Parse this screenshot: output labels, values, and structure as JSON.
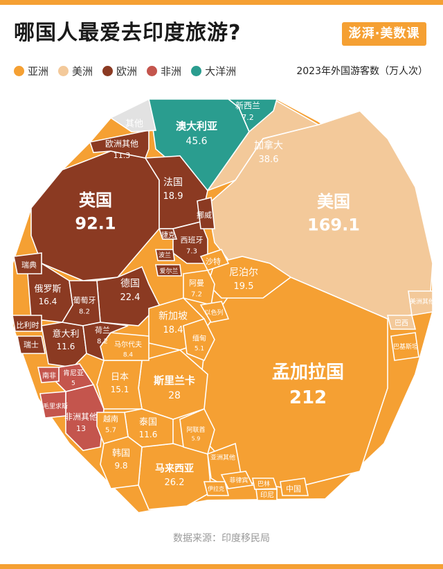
{
  "title": "哪国人最爱去印度旅游?",
  "logo_text": "澎湃·美数课",
  "unit_note": "2023年外国游客数（万人次）",
  "source": "数据来源：印度移民局",
  "legend": [
    {
      "label": "亚洲",
      "color": "#f5a033"
    },
    {
      "label": "美洲",
      "color": "#f3c99a"
    },
    {
      "label": "欧洲",
      "color": "#8b3a22"
    },
    {
      "label": "非洲",
      "color": "#c4554d"
    },
    {
      "label": "大洋洲",
      "color": "#2a9d8f"
    }
  ],
  "chart_data": {
    "type": "treemap",
    "unit": "万人次",
    "cells": [
      {
        "name": "孟加拉国",
        "value": 212,
        "region": "亚洲"
      },
      {
        "name": "美国",
        "value": 169.1,
        "region": "美洲"
      },
      {
        "name": "英国",
        "value": 92.1,
        "region": "欧洲"
      },
      {
        "name": "澳大利亚",
        "value": 45.6,
        "region": "大洋洲"
      },
      {
        "name": "加拿大",
        "value": 38.6,
        "region": "美洲"
      },
      {
        "name": "斯里兰卡",
        "value": 28,
        "region": "亚洲"
      },
      {
        "name": "马来西亚",
        "value": 26.2,
        "region": "亚洲"
      },
      {
        "name": "德国",
        "value": 22.4,
        "region": "欧洲"
      },
      {
        "name": "尼泊尔",
        "value": 19.5,
        "region": "亚洲"
      },
      {
        "name": "法国",
        "value": 18.9,
        "region": "欧洲"
      },
      {
        "name": "新加坡",
        "value": 18.4,
        "region": "亚洲"
      },
      {
        "name": "俄罗斯",
        "value": 16.4,
        "region": "欧洲"
      },
      {
        "name": "日本",
        "value": 15.1,
        "region": "亚洲"
      },
      {
        "name": "非洲其他",
        "value": 13,
        "region": "非洲"
      },
      {
        "name": "意大利",
        "value": 11.6,
        "region": "欧洲"
      },
      {
        "name": "泰国",
        "value": 11.6,
        "region": "亚洲"
      },
      {
        "name": "欧洲其他",
        "value": 11.3,
        "region": "欧洲"
      },
      {
        "name": "韩国",
        "value": 9.8,
        "region": "亚洲"
      },
      {
        "name": "马尔代夫",
        "value": 8.4,
        "region": "亚洲"
      },
      {
        "name": "葡萄牙",
        "value": 8.2,
        "region": "欧洲"
      },
      {
        "name": "荷兰",
        "value": 8.2,
        "region": "欧洲"
      },
      {
        "name": "西班牙",
        "value": 7.3,
        "region": "欧洲"
      },
      {
        "name": "新西兰",
        "value": 7.2,
        "region": "大洋洲"
      },
      {
        "name": "阿曼",
        "value": 7.2,
        "region": "亚洲"
      },
      {
        "name": "阿联酋",
        "value": 5.9,
        "region": "亚洲"
      },
      {
        "name": "越南",
        "value": 5.7,
        "region": "亚洲"
      },
      {
        "name": "缅甸",
        "value": 5.1,
        "region": "亚洲"
      },
      {
        "name": "肯尼亚",
        "value": 5,
        "region": "非洲"
      },
      {
        "name": "亚洲其他",
        "value": null,
        "region": "亚洲"
      },
      {
        "name": "美洲其他",
        "value": null,
        "region": "美洲"
      },
      {
        "name": "其他",
        "value": null,
        "region": ""
      },
      {
        "name": "沙特",
        "value": null,
        "region": "亚洲"
      },
      {
        "name": "以色列",
        "value": null,
        "region": "亚洲"
      },
      {
        "name": "菲律宾",
        "value": null,
        "region": "亚洲"
      },
      {
        "name": "伊拉克",
        "value": null,
        "region": "亚洲"
      },
      {
        "name": "巴林",
        "value": null,
        "region": "亚洲"
      },
      {
        "name": "印尼",
        "value": null,
        "region": "亚洲"
      },
      {
        "name": "中国",
        "value": null,
        "region": "亚洲"
      },
      {
        "name": "巴西",
        "value": null,
        "region": "美洲"
      },
      {
        "name": "巴基斯坦",
        "value": null,
        "region": "亚洲"
      },
      {
        "name": "挪威",
        "value": null,
        "region": "欧洲"
      },
      {
        "name": "捷克",
        "value": null,
        "region": "欧洲"
      },
      {
        "name": "波兰",
        "value": null,
        "region": "欧洲"
      },
      {
        "name": "爱尔兰",
        "value": null,
        "region": "欧洲"
      },
      {
        "name": "瑞典",
        "value": null,
        "region": "欧洲"
      },
      {
        "name": "比利时",
        "value": null,
        "region": "欧洲"
      },
      {
        "name": "瑞士",
        "value": null,
        "region": "欧洲"
      },
      {
        "name": "南非",
        "value": null,
        "region": "非洲"
      },
      {
        "name": "毛里求斯",
        "value": null,
        "region": "非洲"
      }
    ]
  }
}
